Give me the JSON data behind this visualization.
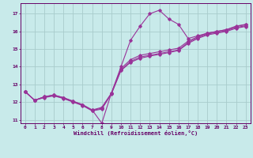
{
  "xlabel": "Windchill (Refroidissement éolien,°C)",
  "bg_color": "#c8eaea",
  "grid_color": "#a8cccc",
  "line_color": "#993399",
  "xlim": [
    -0.5,
    23.5
  ],
  "ylim": [
    10.8,
    17.6
  ],
  "yticks": [
    11,
    12,
    13,
    14,
    15,
    16,
    17
  ],
  "xticks": [
    0,
    1,
    2,
    3,
    4,
    5,
    6,
    7,
    8,
    9,
    10,
    11,
    12,
    13,
    14,
    15,
    16,
    17,
    18,
    19,
    20,
    21,
    22,
    23
  ],
  "curves": [
    [
      12.6,
      12.1,
      12.3,
      12.4,
      12.25,
      12.05,
      11.85,
      11.55,
      10.8,
      12.5,
      14.0,
      15.5,
      16.3,
      17.0,
      17.2,
      16.7,
      16.4,
      15.6,
      15.75,
      15.9,
      16.0,
      16.1,
      16.3,
      16.4
    ],
    [
      12.6,
      12.1,
      12.3,
      12.4,
      12.25,
      12.05,
      11.85,
      11.55,
      11.7,
      12.5,
      13.9,
      14.4,
      14.65,
      14.75,
      14.85,
      14.95,
      15.05,
      15.45,
      15.7,
      15.9,
      16.0,
      16.1,
      16.28,
      16.38
    ],
    [
      12.6,
      12.1,
      12.28,
      12.38,
      12.22,
      12.02,
      11.82,
      11.52,
      11.65,
      12.48,
      13.82,
      14.3,
      14.55,
      14.65,
      14.75,
      14.85,
      14.95,
      15.38,
      15.65,
      15.85,
      15.95,
      16.05,
      16.22,
      16.32
    ],
    [
      12.6,
      12.1,
      12.25,
      12.35,
      12.2,
      12.0,
      11.8,
      11.5,
      11.6,
      12.45,
      13.78,
      14.25,
      14.48,
      14.6,
      14.7,
      14.8,
      14.92,
      15.32,
      15.6,
      15.8,
      15.9,
      16.0,
      16.18,
      16.28
    ]
  ]
}
